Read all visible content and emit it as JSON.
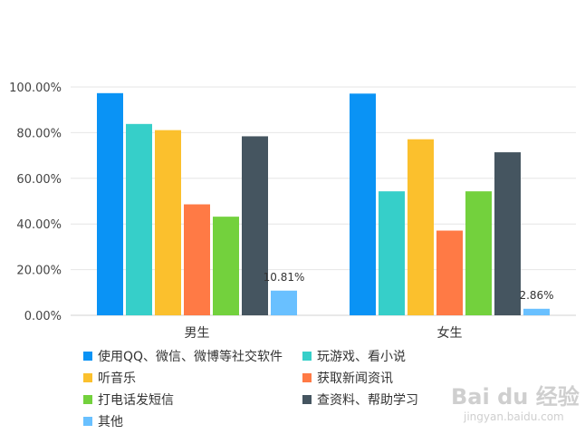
{
  "chart_data": {
    "type": "bar",
    "title": "",
    "categories": [
      "男生",
      "女生"
    ],
    "ylim": [
      0,
      100
    ],
    "yticks": [
      "0.00%",
      "20.00%",
      "40.00%",
      "60.00%",
      "80.00%",
      "100.00%"
    ],
    "grid": true,
    "legend_position": "bottom",
    "series": [
      {
        "name": "使用QQ、微信、微博等社交软件",
        "values": [
          97.3,
          97.1
        ],
        "labels": [
          "",
          ""
        ],
        "color": "#0a93f5"
      },
      {
        "name": "玩游戏、看小说",
        "values": [
          83.8,
          54.3
        ],
        "labels": [
          "",
          ""
        ],
        "color": "#36cfc9"
      },
      {
        "name": "听音乐",
        "values": [
          81.1,
          77.1
        ],
        "labels": [
          "",
          ""
        ],
        "color": "#fbc02d"
      },
      {
        "name": "获取新闻资讯",
        "values": [
          48.6,
          37.1
        ],
        "labels": [
          "",
          ""
        ],
        "color": "#ff7a45"
      },
      {
        "name": "打电话发短信",
        "values": [
          43.2,
          54.3
        ],
        "labels": [
          "",
          ""
        ],
        "color": "#73d13d"
      },
      {
        "name": "查资料、帮助学习",
        "values": [
          78.4,
          71.4
        ],
        "labels": [
          "",
          ""
        ],
        "color": "#455560"
      },
      {
        "name": "其他",
        "values": [
          10.81,
          2.86
        ],
        "labels": [
          "10.81%",
          "2.86%"
        ],
        "color": "#69c0ff"
      }
    ]
  },
  "watermark": {
    "brand": "Bai du 经验",
    "url": "jingyan.baidu.com"
  }
}
